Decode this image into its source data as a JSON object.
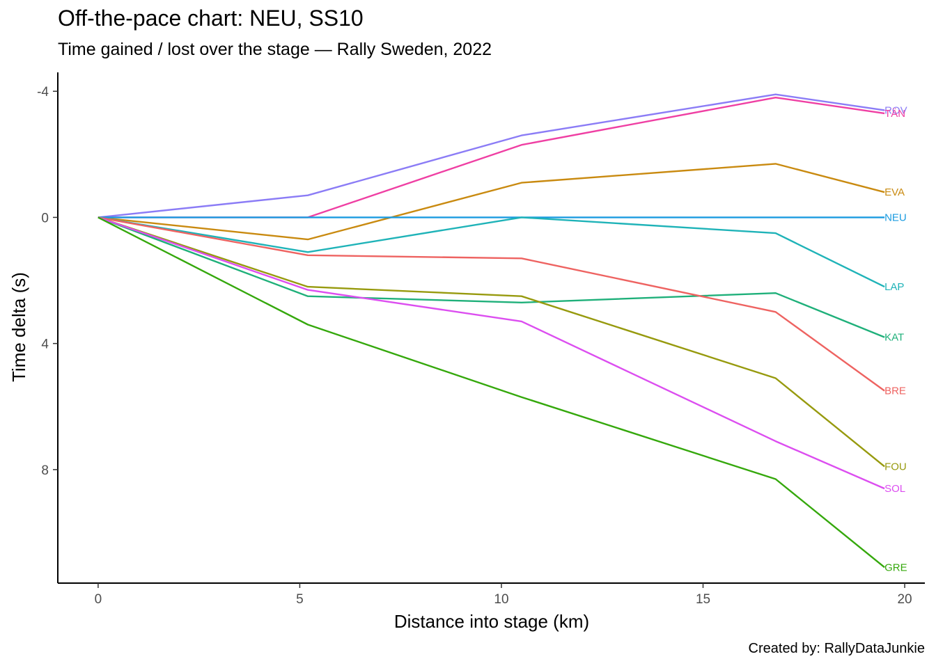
{
  "header": {
    "title": "Off-the-pace chart: NEU, SS10",
    "subtitle": "Time gained / lost over the stage — Rally Sweden, 2022"
  },
  "caption": "Created by: RallyDataJunkie",
  "chart_data": {
    "type": "line",
    "title": "Off-the-pace chart: NEU, SS10",
    "subtitle": "Time gained / lost over the stage — Rally Sweden, 2022",
    "xlabel": "Distance into stage (km)",
    "ylabel": "Time delta (s)",
    "xlim": [
      -1,
      20.5
    ],
    "ylim": [
      -4.6,
      11.6
    ],
    "y_reversed": true,
    "x_ticks": [
      0,
      5,
      10,
      15,
      20
    ],
    "y_ticks": [
      -4,
      0,
      4,
      8
    ],
    "grid": false,
    "legend": "none (series labelled at line ends)",
    "x": [
      0,
      5.2,
      10.5,
      16.8,
      19.5
    ],
    "series": [
      {
        "name": "ROV",
        "color": "#8B7CF6",
        "values": [
          0,
          -0.7,
          -2.6,
          -3.9,
          -3.4
        ]
      },
      {
        "name": "TÄN",
        "color": "#EF3FA3",
        "values": [
          0,
          0,
          -2.3,
          -3.8,
          -3.3
        ]
      },
      {
        "name": "EVA",
        "color": "#C98A10",
        "values": [
          0,
          0.7,
          -1.1,
          -1.7,
          -0.8
        ]
      },
      {
        "name": "NEU",
        "color": "#1A9BE0",
        "values": [
          0,
          0,
          0,
          0,
          0
        ]
      },
      {
        "name": "LAP",
        "color": "#1FB3B8",
        "values": [
          0,
          1.1,
          0,
          0.5,
          2.2
        ]
      },
      {
        "name": "KAT",
        "color": "#1FB07A",
        "values": [
          0,
          2.5,
          2.7,
          2.4,
          3.8
        ]
      },
      {
        "name": "BRE",
        "color": "#EE6361",
        "values": [
          0,
          1.2,
          1.3,
          3.0,
          5.5
        ]
      },
      {
        "name": "FOU",
        "color": "#979A0E",
        "values": [
          0,
          2.2,
          2.5,
          5.1,
          7.9
        ]
      },
      {
        "name": "SOL",
        "color": "#DC4EF0",
        "values": [
          0,
          2.3,
          3.3,
          7.1,
          8.6
        ]
      },
      {
        "name": "GRE",
        "color": "#35A80C",
        "values": [
          0,
          3.4,
          5.7,
          8.3,
          11.1
        ]
      }
    ]
  }
}
